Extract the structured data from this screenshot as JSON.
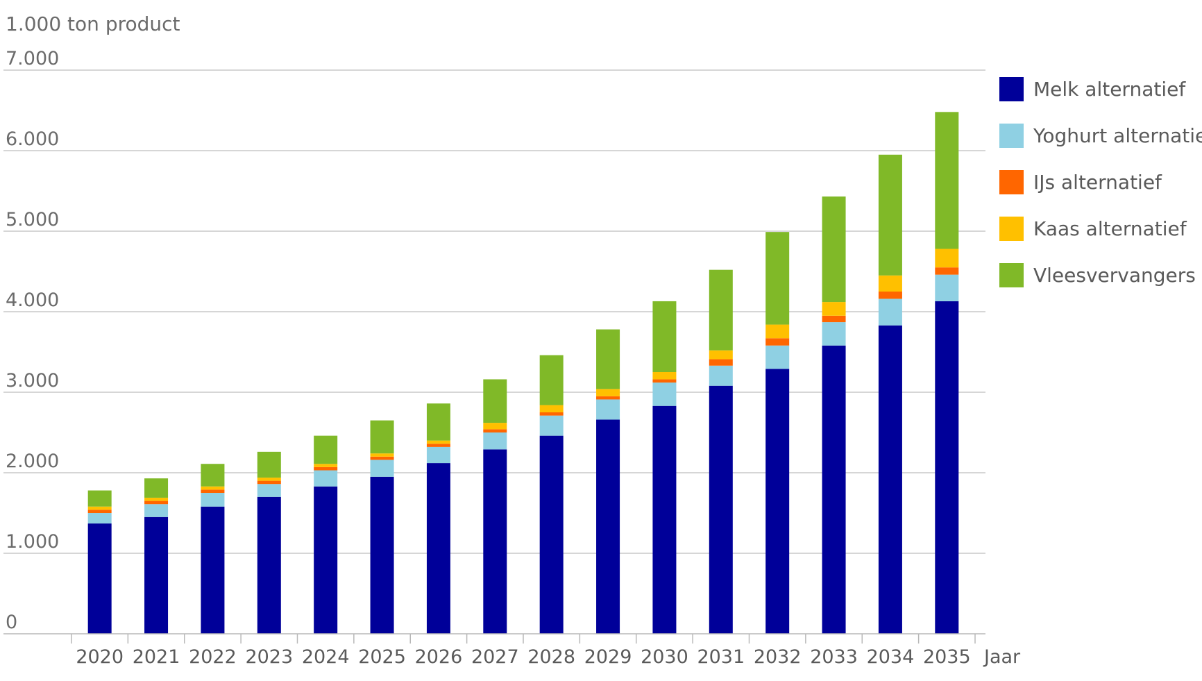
{
  "chart_data": {
    "type": "bar",
    "stacked": true,
    "ylabel": "1.000 ton product",
    "xlabel": "Jaar",
    "ylim": [
      0,
      7000
    ],
    "yticks": [
      0,
      1000,
      2000,
      3000,
      4000,
      5000,
      6000,
      7000
    ],
    "ytick_labels": [
      "0",
      "1.000",
      "2.000",
      "3.000",
      "4.000",
      "5.000",
      "6.000",
      "7.000"
    ],
    "grid": true,
    "legend_position": "right",
    "categories": [
      "2020",
      "2021",
      "2022",
      "2023",
      "2024",
      "2025",
      "2026",
      "2027",
      "2028",
      "2029",
      "2030",
      "2031",
      "2032",
      "2033",
      "2034",
      "2035"
    ],
    "series": [
      {
        "name": "Melk alternatief",
        "color": "#000099",
        "values": [
          1370,
          1450,
          1580,
          1700,
          1830,
          1950,
          2120,
          2290,
          2460,
          2660,
          2830,
          3080,
          3290,
          3580,
          3830,
          4130
        ]
      },
      {
        "name": "Yoghurt alternatief",
        "color": "#8fd0e3",
        "values": [
          130,
          160,
          170,
          160,
          200,
          210,
          200,
          210,
          250,
          250,
          290,
          250,
          290,
          290,
          330,
          330
        ]
      },
      {
        "name": "IJs alternatief",
        "color": "#ff6600",
        "values": [
          40,
          40,
          40,
          40,
          40,
          40,
          40,
          40,
          40,
          40,
          40,
          80,
          90,
          80,
          90,
          90
        ]
      },
      {
        "name": "Kaas alternatief",
        "color": "#ffc000",
        "values": [
          40,
          40,
          40,
          40,
          40,
          40,
          40,
          80,
          90,
          90,
          90,
          110,
          170,
          170,
          200,
          230
        ]
      },
      {
        "name": "Vleesvervangers",
        "color": "#80b928",
        "values": [
          200,
          240,
          280,
          320,
          350,
          410,
          460,
          540,
          620,
          740,
          880,
          1000,
          1150,
          1310,
          1500,
          1700
        ]
      }
    ]
  }
}
